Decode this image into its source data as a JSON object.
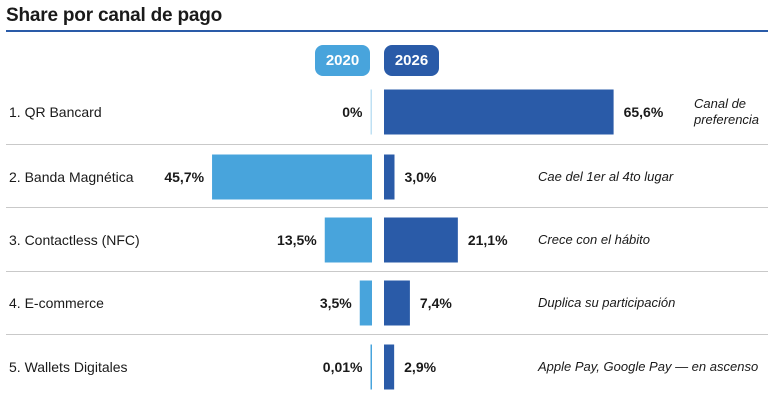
{
  "title": "Share por canal de pago",
  "colors": {
    "y2020": "#48a4dc",
    "y2026": "#2a5ba8",
    "rule": "#2a5ba8"
  },
  "years": {
    "left": "2020",
    "right": "2026"
  },
  "chart_data": {
    "type": "bar",
    "title": "Share por canal de pago",
    "categories": [
      "1. QR Bancard",
      "2. Banda Magnética",
      "3. Contactless (NFC)",
      "4. E-commerce",
      "5. Wallets Digitales"
    ],
    "series": [
      {
        "name": "2020",
        "values": [
          0,
          45.7,
          13.5,
          3.5,
          0.01
        ],
        "labels": [
          "0%",
          "45,7%",
          "13,5%",
          "3,5%",
          "0,01%"
        ]
      },
      {
        "name": "2026",
        "values": [
          65.6,
          3.0,
          21.1,
          7.4,
          2.9
        ],
        "labels": [
          "65,6%",
          "3,0%",
          "21,1%",
          "7,4%",
          "2,9%"
        ]
      }
    ],
    "notes": [
      "Canal de preferencia",
      "Cae del 1er al 4to lugar",
      "Crece con el hábito",
      "Duplica su participación",
      "Apple Pay, Google Pay — en ascenso"
    ]
  }
}
